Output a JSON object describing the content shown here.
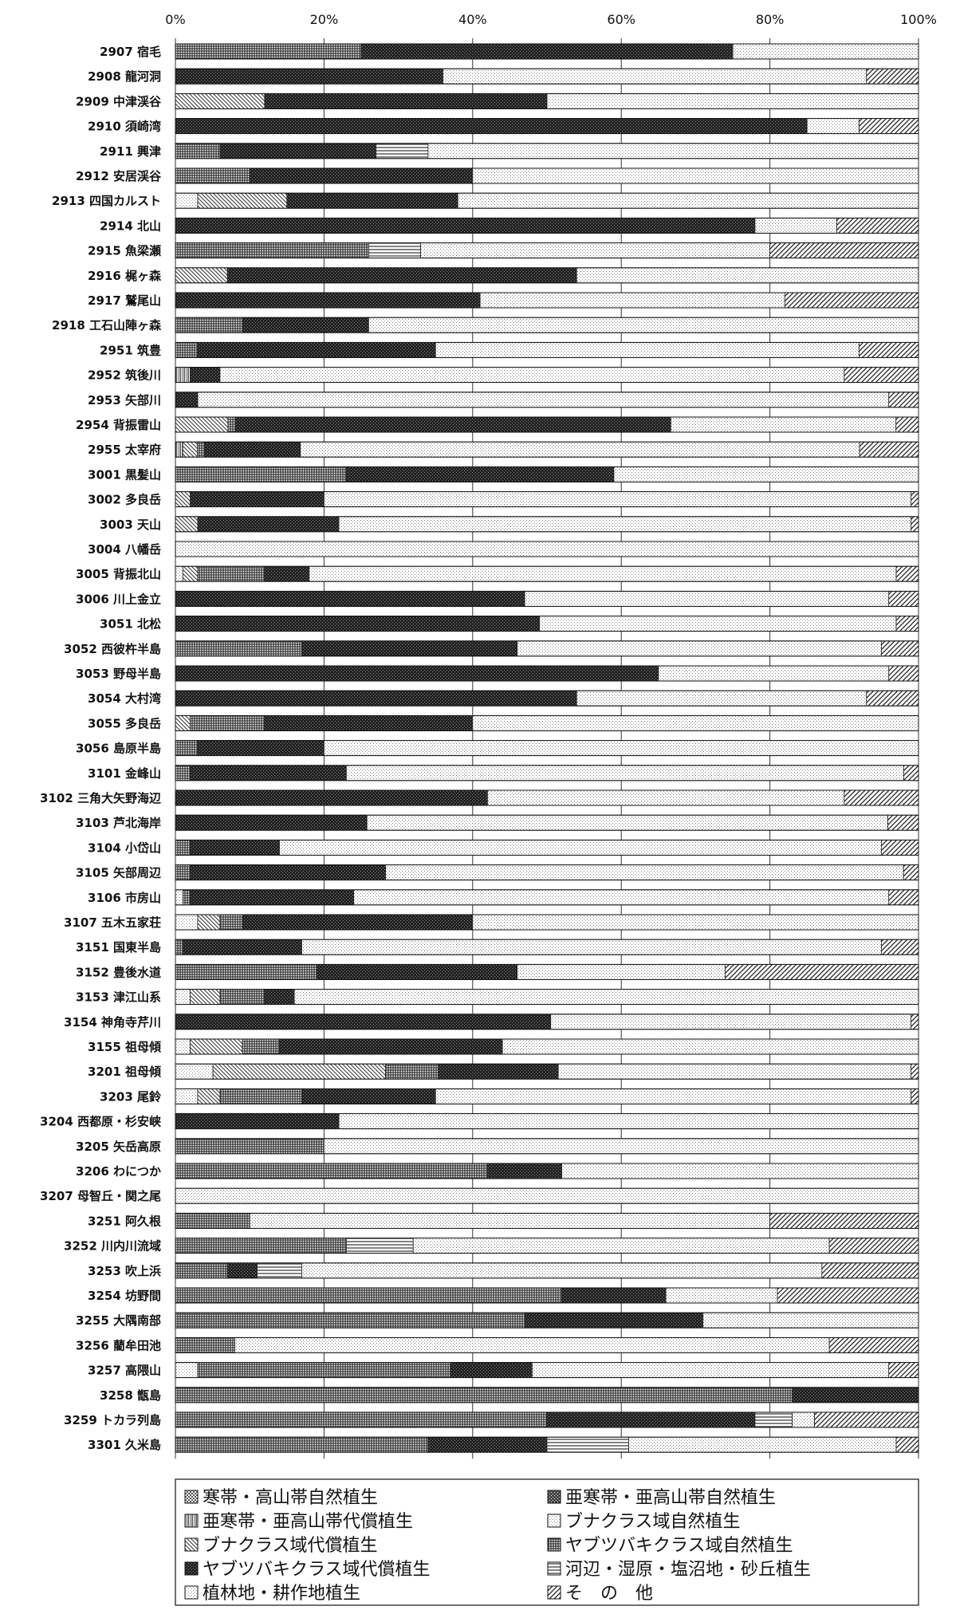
{
  "chart_data": {
    "type": "bar",
    "orientation": "horizontal",
    "stacked": true,
    "percent": true,
    "xlim": [
      0,
      100
    ],
    "x_ticks": [
      "0%",
      "20%",
      "40%",
      "60%",
      "80%",
      "100%"
    ],
    "grid": true,
    "legend_position": "bottom",
    "categories": [
      "2907 宿毛",
      "2908 龍河洞",
      "2909 中津渓谷",
      "2910 須崎湾",
      "2911 興津",
      "2912 安居渓谷",
      "2913 四国カルスト",
      "2914 北山",
      "2915 魚梁瀬",
      "2916 梶ヶ森",
      "2917 鷲尾山",
      "2918 工石山陣ヶ森",
      "2951 筑豊",
      "2952 筑後川",
      "2953 矢部川",
      "2954 背振雷山",
      "2955 太宰府",
      "3001 黒髪山",
      "3002 多良岳",
      "3003 天山",
      "3004 八幡岳",
      "3005 背振北山",
      "3006 川上金立",
      "3051 北松",
      "3052 西彼杵半島",
      "3053 野母半島",
      "3054 大村湾",
      "3055 多良岳",
      "3056 島原半島",
      "3101 金峰山",
      "3102 三角大矢野海辺",
      "3103 芦北海岸",
      "3104 小岱山",
      "3105 矢部周辺",
      "3106 市房山",
      "3107 五木五家荘",
      "3151 国東半島",
      "3152 豊後水道",
      "3153 津江山系",
      "3154 神角寺芹川",
      "3155 祖母傾",
      "3201 祖母傾",
      "3203 尾鈴",
      "3204 西都原・杉安峡",
      "3205 矢岳高原",
      "3206 わにつか",
      "3207 母智丘・関之尾",
      "3251 阿久根",
      "3252 川内川流域",
      "3253 吹上浜",
      "3254 坊野間",
      "3255 大隅南部",
      "3256 藺牟田池",
      "3257 高隈山",
      "3258 甑島",
      "3259 トカラ列島",
      "3301 久米島"
    ],
    "series": [
      {
        "name": "寒帯・高山帯自然植生",
        "color": "#bdbdbd",
        "values": [
          0,
          0,
          0,
          0,
          0,
          0,
          0,
          0,
          0,
          0,
          0,
          0,
          0,
          0,
          0,
          0,
          0,
          0,
          0,
          0,
          0,
          0,
          0,
          0,
          0,
          0,
          0,
          0,
          0,
          0,
          0,
          0,
          0,
          0,
          0,
          0,
          0,
          0,
          0,
          0,
          0,
          0,
          0,
          0,
          0,
          0,
          0,
          0,
          0,
          0,
          0,
          0,
          0,
          0,
          0,
          0,
          0
        ]
      },
      {
        "name": "亜寒帯・亜高山帯自然植生",
        "color": "#6e6e6e",
        "values": [
          0,
          0,
          0,
          0,
          0,
          0,
          0,
          0,
          0,
          0,
          0,
          0,
          0,
          0,
          0,
          0,
          0,
          0,
          0,
          0,
          0,
          0,
          0,
          0,
          0,
          0,
          0,
          0,
          0,
          0,
          0,
          0,
          0,
          0,
          0,
          0,
          0,
          0,
          0,
          0,
          0,
          0,
          0,
          0,
          0,
          0,
          0,
          0,
          0,
          0,
          0,
          0,
          0,
          0,
          0,
          0,
          0
        ]
      },
      {
        "name": "亜寒帯・亜高山帯代償植生",
        "color": "#9a9a9a",
        "values": [
          0,
          0,
          0,
          0,
          0,
          0,
          0,
          0,
          0,
          0,
          0,
          0,
          0,
          2,
          0,
          0,
          1,
          0,
          0,
          0,
          0,
          0,
          0,
          0,
          0,
          0,
          0,
          0,
          0,
          0,
          0,
          0,
          0,
          0,
          0,
          0,
          0,
          0,
          0,
          0,
          0,
          0,
          0,
          0,
          0,
          0,
          0,
          0,
          0,
          0,
          0,
          0,
          0,
          0,
          0,
          0,
          0
        ]
      },
      {
        "name": "ブナクラス域自然植生",
        "color": "#e6e6e6",
        "values": [
          0,
          0,
          0,
          0,
          0,
          0,
          3,
          0,
          0,
          0,
          0,
          0,
          0,
          0,
          0,
          0,
          0,
          0,
          0,
          0,
          0,
          1,
          0,
          0,
          0,
          0,
          0,
          0,
          0,
          0,
          0,
          0,
          0,
          0,
          1,
          3,
          0,
          0,
          2,
          0,
          2,
          5,
          3,
          0,
          0,
          0,
          0,
          0,
          0,
          0,
          0,
          0,
          0,
          3,
          0,
          0,
          0
        ]
      },
      {
        "name": "ブナクラス域代償植生",
        "color": "#c4c4c4",
        "values": [
          0,
          0,
          12,
          0,
          0,
          0,
          12,
          0,
          0,
          7,
          0,
          0,
          0,
          0,
          0,
          7,
          2,
          0,
          2,
          3,
          0,
          2,
          0,
          0,
          0,
          0,
          0,
          2,
          0,
          0,
          0,
          0,
          0,
          0,
          0,
          3,
          0,
          0,
          4,
          0,
          7,
          23,
          3,
          0,
          0,
          0,
          0,
          0,
          0,
          0,
          0,
          0,
          0,
          0,
          0,
          0,
          0
        ]
      },
      {
        "name": "ヤブツバキクラス域自然植生",
        "color": "#8c8c8c",
        "values": [
          25,
          0,
          0,
          0,
          6,
          10,
          0,
          0,
          26,
          0,
          0,
          9,
          3,
          0,
          0,
          1,
          1,
          23,
          0,
          0,
          0,
          9,
          0,
          0,
          17,
          0,
          0,
          10,
          3,
          2,
          0,
          0,
          2,
          2,
          1,
          3,
          1,
          19,
          6,
          0,
          5,
          7,
          11,
          0,
          20,
          42,
          0,
          10,
          23,
          7,
          52,
          47,
          8,
          34,
          83,
          50,
          34
        ]
      },
      {
        "name": "ヤブツバキクラス域代償植生",
        "color": "#2a2a2a",
        "values": [
          50,
          36,
          38,
          85,
          21,
          30,
          23,
          78,
          0,
          47,
          41,
          17,
          32,
          4,
          3,
          58,
          13,
          36,
          18,
          19,
          0,
          6,
          47,
          49,
          29,
          65,
          54,
          28,
          17,
          21,
          42,
          25,
          12,
          26,
          22,
          31,
          16,
          27,
          4,
          50,
          30,
          16,
          18,
          22,
          0,
          10,
          0,
          0,
          0,
          4,
          14,
          24,
          0,
          11,
          17,
          28,
          16
        ]
      },
      {
        "name": "河辺・湿原・塩沼地・砂丘植生",
        "color": "#dcdcdc",
        "values": [
          0,
          0,
          0,
          0,
          7,
          0,
          0,
          0,
          7,
          0,
          0,
          0,
          0,
          0,
          0,
          0,
          0,
          0,
          0,
          0,
          0,
          0,
          0,
          0,
          0,
          0,
          0,
          0,
          0,
          0,
          0,
          0,
          0,
          0,
          0,
          0,
          0,
          0,
          0,
          0,
          0,
          0,
          0,
          0,
          0,
          0,
          0,
          0,
          9,
          6,
          0,
          0,
          0,
          0,
          0,
          5,
          11
        ]
      },
      {
        "name": "植林地・耕作地植生",
        "color": "#ececec",
        "values": [
          25,
          57,
          50,
          7,
          66,
          60,
          62,
          11,
          47,
          46,
          41,
          74,
          57,
          84,
          93,
          30,
          76,
          41,
          79,
          77,
          100,
          79,
          49,
          48,
          49,
          31,
          39,
          60,
          80,
          75,
          48,
          68,
          81,
          69,
          72,
          60,
          78,
          28,
          84,
          48,
          56,
          47,
          64,
          78,
          80,
          48,
          100,
          70,
          56,
          70,
          15,
          29,
          80,
          48,
          0,
          3,
          36
        ]
      },
      {
        "name": "そ　の　他",
        "color": "#a9a9a9",
        "values": [
          0,
          7,
          0,
          8,
          0,
          0,
          0,
          11,
          20,
          0,
          18,
          0,
          8,
          10,
          4,
          3,
          8,
          0,
          1,
          1,
          0,
          3,
          4,
          3,
          5,
          4,
          7,
          0,
          0,
          2,
          10,
          4,
          5,
          2,
          4,
          0,
          5,
          26,
          0,
          1,
          0,
          1,
          1,
          0,
          0,
          0,
          0,
          20,
          12,
          13,
          19,
          0,
          12,
          4,
          0,
          14,
          3
        ]
      }
    ]
  }
}
